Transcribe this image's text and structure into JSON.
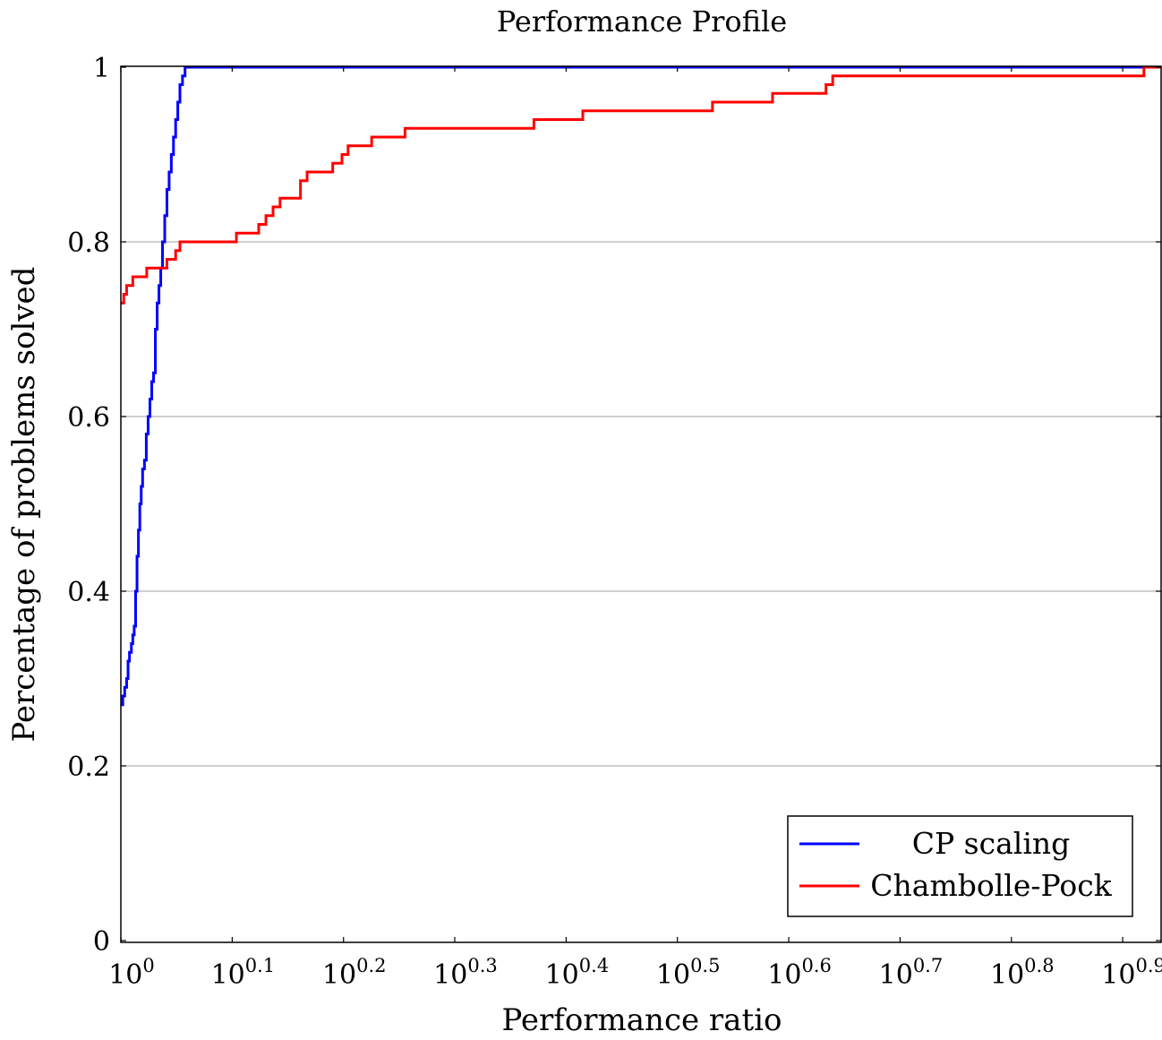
{
  "chart_data": {
    "type": "line",
    "title": "Performance Profile",
    "xlabel": "Performance ratio",
    "ylabel": "Percentage of problems solved",
    "x_scale": "log10",
    "xlim": [
      1,
      8.6
    ],
    "ylim": [
      0,
      1
    ],
    "x_ticks": [
      {
        "base": "10",
        "exp": "0"
      },
      {
        "base": "10",
        "exp": "0.1"
      },
      {
        "base": "10",
        "exp": "0.2"
      },
      {
        "base": "10",
        "exp": "0.3"
      },
      {
        "base": "10",
        "exp": "0.4"
      },
      {
        "base": "10",
        "exp": "0.5"
      },
      {
        "base": "10",
        "exp": "0.6"
      },
      {
        "base": "10",
        "exp": "0.7"
      },
      {
        "base": "10",
        "exp": "0.8"
      },
      {
        "base": "10",
        "exp": "0.9"
      }
    ],
    "x_tick_values": [
      1,
      1.259,
      1.585,
      1.995,
      2.512,
      3.162,
      3.981,
      5.012,
      6.31,
      7.943
    ],
    "y_ticks": [
      "0",
      "0.2",
      "0.4",
      "0.6",
      "0.8",
      "1"
    ],
    "y_tick_values": [
      0,
      0.2,
      0.4,
      0.6,
      0.8,
      1
    ],
    "grid": "horizontal",
    "legend_position": "bottom-right",
    "series": [
      {
        "name": "CP scaling",
        "color": "#0000ff",
        "step": true,
        "x": [
          1.0,
          1.004,
          1.008,
          1.012,
          1.015,
          1.018,
          1.022,
          1.025,
          1.028,
          1.031,
          1.034,
          1.037,
          1.04,
          1.043,
          1.046,
          1.05,
          1.054,
          1.058,
          1.062,
          1.066,
          1.07,
          1.074,
          1.078,
          1.082,
          1.086,
          1.09,
          1.095,
          1.1,
          1.105,
          1.11,
          1.115,
          1.12,
          1.125,
          1.13,
          1.136,
          1.142,
          1.148,
          1.155,
          8.6
        ],
        "y": [
          0.27,
          0.28,
          0.29,
          0.3,
          0.32,
          0.33,
          0.34,
          0.35,
          0.36,
          0.4,
          0.44,
          0.47,
          0.5,
          0.52,
          0.54,
          0.55,
          0.58,
          0.6,
          0.62,
          0.64,
          0.65,
          0.7,
          0.73,
          0.75,
          0.77,
          0.8,
          0.83,
          0.86,
          0.88,
          0.9,
          0.92,
          0.94,
          0.96,
          0.98,
          0.99,
          1.0,
          1.0,
          1.0,
          1.0
        ]
      },
      {
        "name": "Chambolle-Pock",
        "color": "#ff0000",
        "step": true,
        "x": [
          1.0,
          1.006,
          1.012,
          1.025,
          1.055,
          1.1,
          1.12,
          1.13,
          1.18,
          1.27,
          1.33,
          1.35,
          1.37,
          1.39,
          1.45,
          1.47,
          1.55,
          1.58,
          1.6,
          1.62,
          1.68,
          1.8,
          2.0,
          2.35,
          2.6,
          3.4,
          3.85,
          4.3,
          4.36,
          8.3,
          8.6
        ],
        "y": [
          0.73,
          0.74,
          0.75,
          0.76,
          0.77,
          0.78,
          0.79,
          0.8,
          0.8,
          0.81,
          0.82,
          0.83,
          0.84,
          0.85,
          0.87,
          0.88,
          0.89,
          0.9,
          0.91,
          0.91,
          0.92,
          0.93,
          0.93,
          0.94,
          0.95,
          0.96,
          0.97,
          0.98,
          0.99,
          1.0,
          1.0
        ]
      }
    ]
  }
}
